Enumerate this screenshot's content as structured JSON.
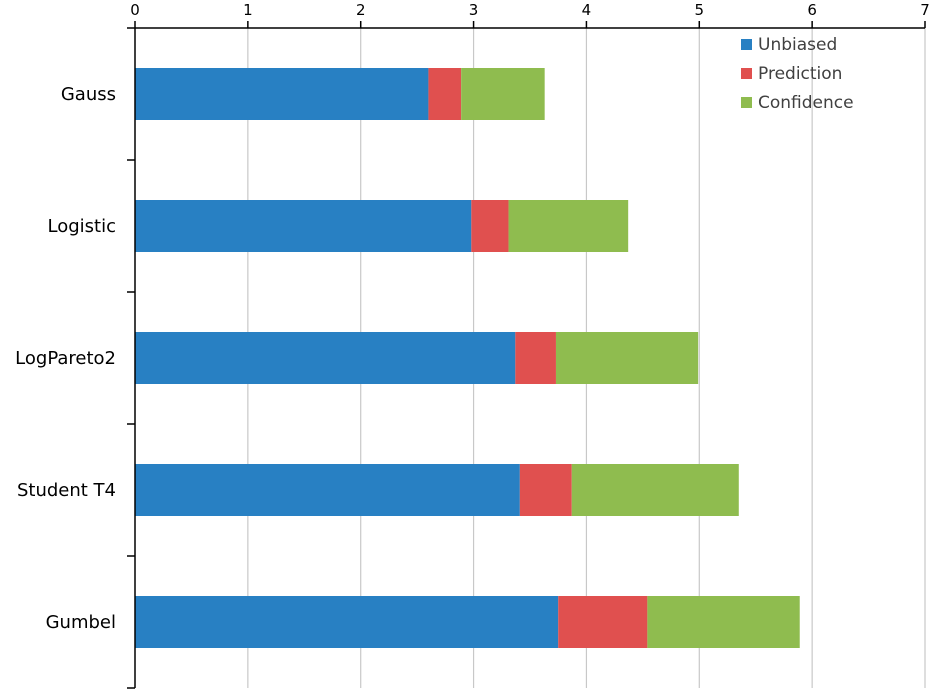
{
  "chart_data": {
    "type": "bar",
    "orientation": "horizontal",
    "stacked": true,
    "categories": [
      "Gauss",
      "Logistic",
      "LogPareto2",
      "Student T4",
      "Gumbel"
    ],
    "series": [
      {
        "name": "Unbiased",
        "color": "#2880C3",
        "values": [
          2.6,
          2.98,
          3.37,
          3.41,
          3.75
        ]
      },
      {
        "name": "Prediction",
        "color": "#E0504F",
        "values": [
          0.29,
          0.33,
          0.36,
          0.46,
          0.79
        ]
      },
      {
        "name": "Confidence",
        "color": "#8FBC4F",
        "values": [
          0.74,
          1.06,
          1.26,
          1.48,
          1.35
        ]
      }
    ],
    "xlim": [
      0,
      7
    ],
    "xticks": [
      "0",
      "1",
      "2",
      "3",
      "4",
      "5",
      "6",
      "7"
    ],
    "x_axis_position": "top",
    "grid": "vertical",
    "legend_position": "top-right",
    "title": "",
    "xlabel": "",
    "ylabel": ""
  }
}
